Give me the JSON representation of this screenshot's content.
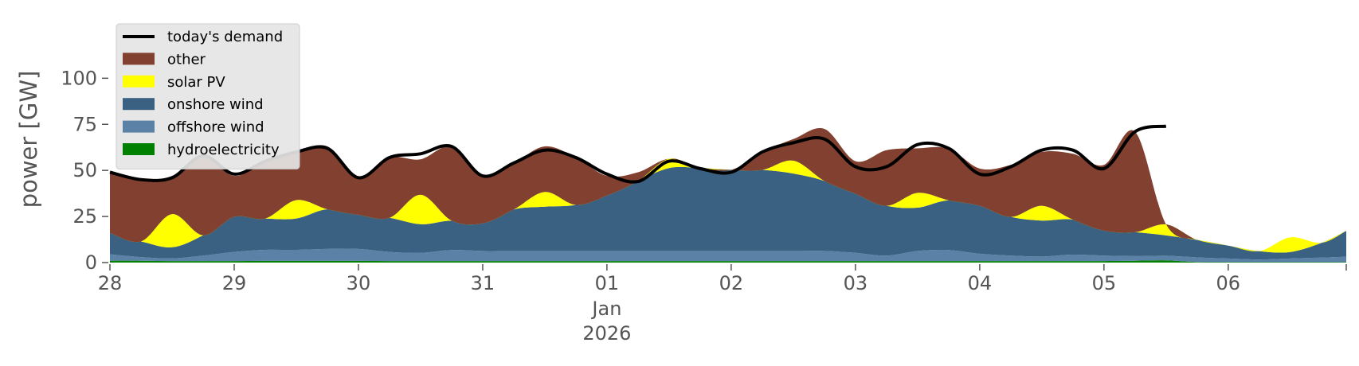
{
  "chart_data": {
    "type": "area",
    "title": "",
    "ylabel": "power [GW]",
    "xlabel": "",
    "ylim": [
      0,
      120
    ],
    "xlim": [
      0,
      9.95
    ],
    "x_unit": "days from 28 Dec 2025 00:00",
    "grid": false,
    "legend_position": "top-left",
    "yticks": [
      0,
      25,
      50,
      75,
      100
    ],
    "xticks": [
      {
        "x": 0,
        "label": "28"
      },
      {
        "x": 1,
        "label": "29"
      },
      {
        "x": 2,
        "label": "30"
      },
      {
        "x": 3,
        "label": "31"
      },
      {
        "x": 4,
        "label": "01"
      },
      {
        "x": 5,
        "label": "02"
      },
      {
        "x": 6,
        "label": "03"
      },
      {
        "x": 7,
        "label": "04"
      },
      {
        "x": 8,
        "label": "05"
      },
      {
        "x": 9,
        "label": "06"
      }
    ],
    "x_sublabels": {
      "x": 4,
      "lines": [
        "Jan",
        "2026"
      ]
    },
    "x": [
      0.0,
      0.25,
      0.5,
      0.75,
      1.0,
      1.25,
      1.5,
      1.75,
      2.0,
      2.25,
      2.5,
      2.75,
      3.0,
      3.25,
      3.5,
      3.75,
      4.0,
      4.25,
      4.5,
      4.75,
      5.0,
      5.25,
      5.5,
      5.75,
      6.0,
      6.25,
      6.5,
      6.75,
      7.0,
      7.25,
      7.5,
      7.75,
      8.0,
      8.25,
      8.5,
      8.75,
      9.0,
      9.25,
      9.5,
      9.75,
      9.95
    ],
    "series": [
      {
        "name": "hydroelectricity",
        "color": "#008000",
        "values": [
          1.0,
          1.0,
          0.8,
          0.8,
          0.8,
          0.9,
          0.9,
          0.9,
          0.9,
          0.8,
          0.8,
          0.8,
          0.8,
          0.8,
          0.8,
          0.8,
          0.8,
          0.8,
          0.8,
          0.8,
          0.8,
          0.8,
          0.8,
          0.8,
          0.8,
          0.8,
          0.8,
          0.8,
          0.8,
          0.8,
          0.8,
          0.8,
          0.8,
          1.0,
          1.2,
          0.3,
          0.2,
          0.2,
          0.2,
          0.2,
          0.2
        ]
      },
      {
        "name": "offshore wind",
        "color": "#5b82a6",
        "values": [
          3.5,
          2.0,
          1.5,
          3.0,
          5.0,
          6.0,
          6.0,
          6.5,
          6.5,
          5.0,
          4.5,
          6.0,
          5.5,
          5.5,
          5.5,
          5.5,
          5.5,
          5.5,
          5.5,
          5.5,
          5.5,
          5.5,
          5.5,
          5.5,
          4.5,
          3.0,
          5.5,
          6.0,
          4.0,
          3.0,
          2.5,
          3.5,
          3.0,
          2.5,
          2.5,
          2.5,
          2.0,
          1.5,
          2.0,
          2.5,
          3.0
        ]
      },
      {
        "name": "onshore wind",
        "color": "#3b6182",
        "values": [
          11.5,
          8.5,
          6.0,
          11.0,
          19.0,
          17.0,
          17.0,
          21.5,
          18.5,
          18.5,
          15.5,
          16.0,
          15.0,
          22.5,
          24.0,
          25.0,
          30.0,
          38.0,
          45.0,
          45.0,
          44.0,
          44.0,
          42.0,
          38.0,
          32.0,
          27.0,
          23.5,
          27.0,
          26.0,
          21.0,
          19.5,
          19.0,
          13.5,
          13.0,
          11.0,
          9.5,
          7.0,
          4.5,
          3.5,
          8.0,
          14.0
        ]
      },
      {
        "name": "solar PV",
        "color": "#ffff00",
        "values": [
          0,
          0,
          18,
          0,
          0,
          0,
          10,
          0,
          0,
          0,
          16,
          0,
          0,
          0,
          8,
          0,
          0,
          0,
          5,
          0,
          0,
          0,
          7,
          0,
          0,
          0,
          8,
          0,
          0,
          0,
          8,
          0,
          0,
          0,
          6,
          0,
          0,
          0,
          8,
          0,
          0
        ]
      },
      {
        "name": "other",
        "color": "#814030",
        "values": [
          33,
          33.5,
          20.7,
          43.2,
          22.2,
          31.1,
          26.1,
          34.1,
          20.1,
          32.7,
          19.2,
          40.2,
          25.7,
          25.2,
          24.7,
          25.7,
          10.7,
          4.7,
          0,
          0.2,
          0,
          9.7,
          11.7,
          28.2,
          17.7,
          30.2,
          24.2,
          28.0,
          20.2,
          28.2,
          29.2,
          35.7,
          35.7,
          54.5,
          0,
          0,
          0,
          0,
          0,
          0,
          0
        ]
      }
    ],
    "demand": {
      "name": "today's demand",
      "color": "#000000",
      "x": [
        0.0,
        0.25,
        0.5,
        0.75,
        1.0,
        1.25,
        1.5,
        1.75,
        2.0,
        2.25,
        2.5,
        2.75,
        3.0,
        3.25,
        3.5,
        3.75,
        4.0,
        4.25,
        4.5,
        4.75,
        5.0,
        5.25,
        5.5,
        5.75,
        6.0,
        6.25,
        6.5,
        6.75,
        7.0,
        7.25,
        7.5,
        7.75,
        8.0,
        8.25,
        8.5
      ],
      "values": [
        49,
        45,
        46,
        58,
        48,
        55,
        60,
        62,
        46,
        57,
        59,
        63,
        47,
        54,
        61,
        57,
        48,
        44,
        55,
        51,
        49,
        60,
        65,
        67,
        52,
        52,
        64,
        62,
        48,
        52,
        61,
        61,
        51,
        71,
        74
      ]
    }
  }
}
